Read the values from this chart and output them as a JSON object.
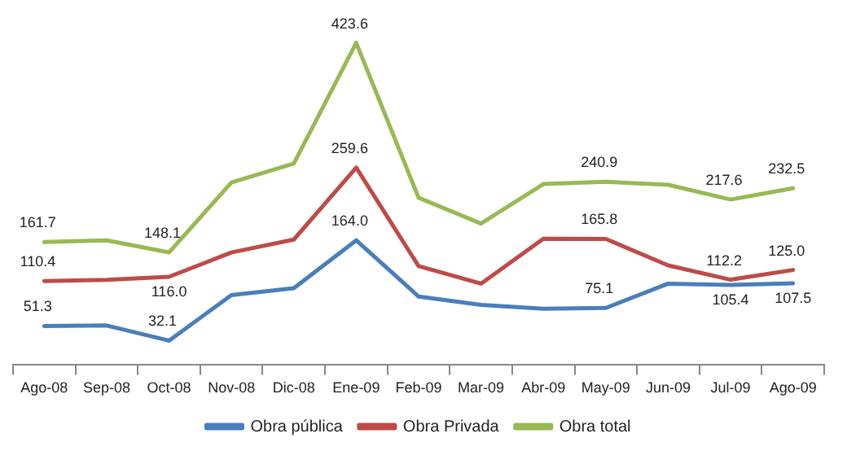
{
  "chart_data": {
    "type": "line",
    "categories": [
      "Ago-08",
      "Sep-08",
      "Oct-08",
      "Nov-08",
      "Dic-08",
      "Ene-09",
      "Feb-09",
      "Mar-09",
      "Abr-09",
      "May-09",
      "Jun-09",
      "Jul-09",
      "Ago-09"
    ],
    "series": [
      {
        "name": "Obra pública",
        "color": "#4a7ebb",
        "values": [
          51.3,
          52,
          32.1,
          92,
          101,
          164.0,
          90,
          79,
          74,
          75.1,
          107,
          105.4,
          107.5
        ],
        "value_labels": [
          "51.3",
          null,
          "32.1",
          null,
          null,
          "164.0",
          null,
          null,
          null,
          "75.1",
          null,
          "105.4",
          "107.5"
        ]
      },
      {
        "name": "Obra Privada",
        "color": "#be4b48",
        "values": [
          110.4,
          112,
          116.0,
          148,
          165,
          259.6,
          130,
          107,
          166,
          165.8,
          131,
          112.2,
          125.0
        ],
        "value_labels": [
          "110.4",
          null,
          "116.0",
          null,
          null,
          "259.6",
          null,
          null,
          null,
          "165.8",
          null,
          "112.2",
          "125.0"
        ]
      },
      {
        "name": "Obra total",
        "color": "#98b954",
        "values": [
          161.7,
          164,
          148.1,
          240,
          265,
          423.6,
          220,
          186,
          238,
          240.9,
          237,
          217.6,
          232.5
        ],
        "value_labels": [
          "161.7",
          null,
          "148.1",
          null,
          null,
          "423.6",
          null,
          null,
          null,
          "240.9",
          null,
          "217.6",
          "232.5"
        ]
      }
    ],
    "grid": false,
    "legend": "bottom",
    "marker": "none",
    "line_style": "solid"
  }
}
